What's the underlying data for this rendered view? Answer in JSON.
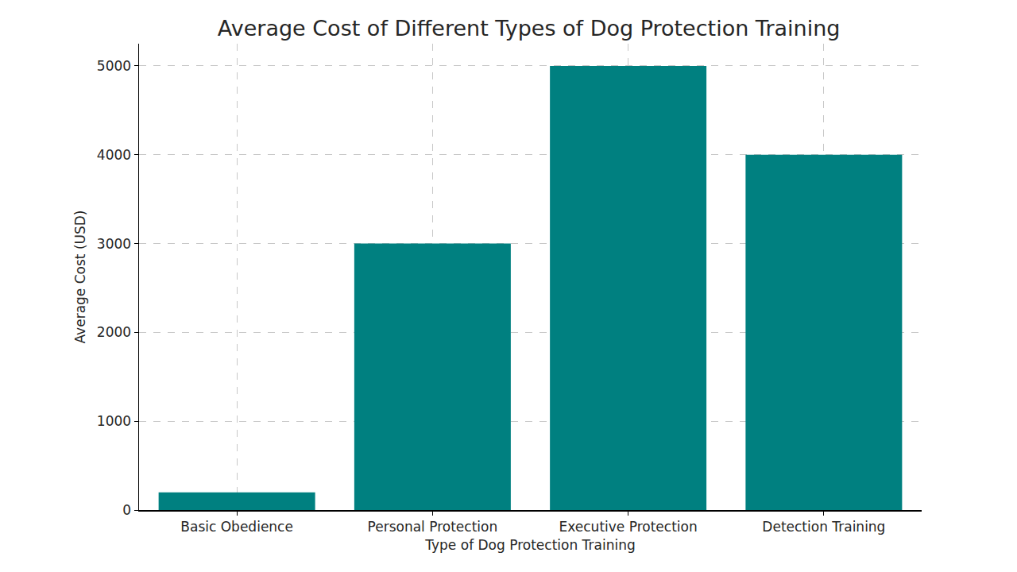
{
  "chart_data": {
    "type": "bar",
    "title": "Average Cost of Different Types of Dog Protection Training",
    "x_label": "Type of Dog Protection Training",
    "y_label": "Average Cost (USD)",
    "categories": [
      "Basic Obedience",
      "Personal Protection",
      "Executive Protection",
      "Detection Training"
    ],
    "values": [
      200,
      3000,
      5000,
      4000
    ],
    "color": "#008080",
    "ylim": [
      0,
      5250
    ],
    "yticks": [
      0,
      1000,
      2000,
      3000,
      4000,
      5000
    ],
    "grid": true
  }
}
